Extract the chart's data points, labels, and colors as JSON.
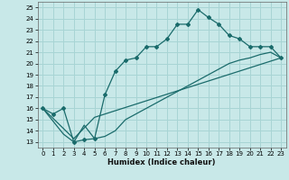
{
  "xlabel": "Humidex (Indice chaleur)",
  "xlim": [
    -0.5,
    23.5
  ],
  "ylim": [
    12.5,
    25.5
  ],
  "xticks": [
    0,
    1,
    2,
    3,
    4,
    5,
    6,
    7,
    8,
    9,
    10,
    11,
    12,
    13,
    14,
    15,
    16,
    17,
    18,
    19,
    20,
    21,
    22,
    23
  ],
  "yticks": [
    13,
    14,
    15,
    16,
    17,
    18,
    19,
    20,
    21,
    22,
    23,
    24,
    25
  ],
  "background_color": "#c8e8e8",
  "line_color": "#1a6b6b",
  "grid_color": "#a8d4d4",
  "line1_x": [
    0,
    1,
    2,
    3,
    4,
    5,
    6,
    7,
    8,
    9,
    10,
    11,
    12,
    13,
    14,
    15,
    16,
    17,
    18,
    19,
    20,
    21,
    22,
    23
  ],
  "line1_y": [
    16.0,
    15.5,
    16.0,
    13.0,
    13.2,
    13.3,
    17.2,
    19.3,
    20.3,
    20.5,
    21.5,
    21.5,
    22.2,
    23.5,
    23.5,
    24.8,
    24.1,
    23.5,
    22.5,
    22.2,
    21.5,
    21.5,
    21.5,
    20.5
  ],
  "line2_x": [
    0,
    2,
    3,
    4,
    5,
    6,
    7,
    8,
    9,
    10,
    11,
    12,
    13,
    14,
    15,
    16,
    17,
    18,
    19,
    20,
    21,
    22,
    23
  ],
  "line2_y": [
    16.0,
    13.7,
    13.0,
    14.5,
    13.3,
    13.5,
    14.0,
    15.0,
    15.5,
    16.0,
    16.5,
    17.0,
    17.5,
    18.0,
    18.5,
    19.0,
    19.5,
    20.0,
    20.3,
    20.5,
    20.8,
    21.0,
    20.5
  ],
  "line3_x": [
    0,
    3,
    5,
    23
  ],
  "line3_y": [
    16.0,
    13.3,
    15.2,
    20.5
  ]
}
